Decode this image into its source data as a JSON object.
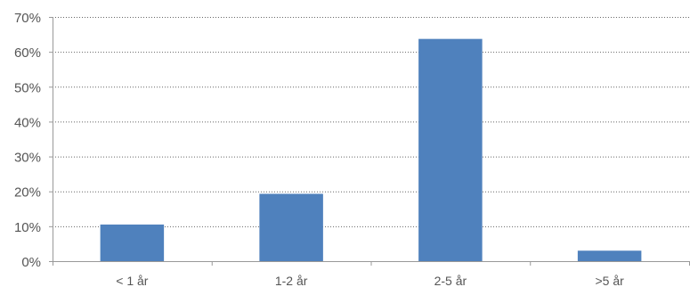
{
  "chart_data": {
    "type": "bar",
    "categories": [
      "< 1 år",
      "1-2 år",
      "2-5 år",
      ">5 år"
    ],
    "values": [
      10.5,
      19.3,
      63.7,
      3.0
    ],
    "ylim": [
      0,
      70
    ],
    "y_ticks": [
      0,
      10,
      20,
      30,
      40,
      50,
      60,
      70
    ],
    "y_tick_suffix": "%",
    "grid": true,
    "bar_color": "#4f81bd",
    "title": "",
    "xlabel": "",
    "ylabel": ""
  }
}
